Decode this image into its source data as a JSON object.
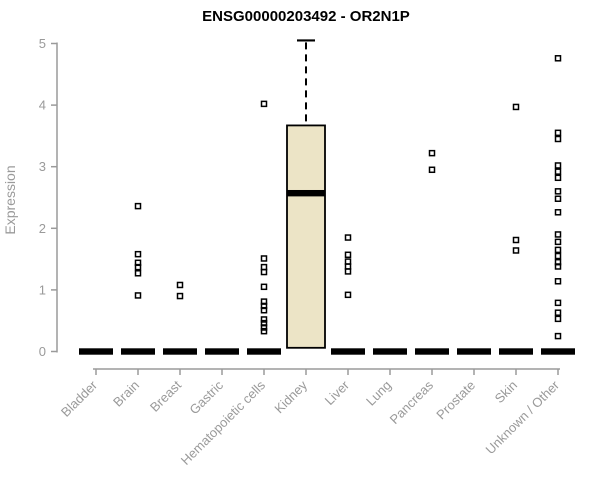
{
  "chart_data": {
    "type": "boxplot",
    "title": "ENSG00000203492 - OR2N1P",
    "ylabel": "Expression",
    "xlabel": "",
    "ylim": [
      0,
      5
    ],
    "yticks": [
      0,
      1,
      2,
      3,
      4,
      5
    ],
    "grid": false,
    "legend": "none",
    "categories": [
      "Bladder",
      "Brain",
      "Breast",
      "Gastric",
      "Hematopoietic cells",
      "Kidney",
      "Liver",
      "Lung",
      "Pancreas",
      "Prostate",
      "Skin",
      "Unknown / Other"
    ],
    "series": [
      {
        "category": "Bladder",
        "q1": 0,
        "median": 0,
        "q3": 0,
        "outliers": []
      },
      {
        "category": "Brain",
        "q1": 0,
        "median": 0,
        "q3": 0,
        "outliers": [
          2.36,
          1.58,
          1.44,
          1.37,
          1.27,
          0.91
        ]
      },
      {
        "category": "Breast",
        "q1": 0,
        "median": 0,
        "q3": 0,
        "outliers": [
          1.08,
          0.9
        ]
      },
      {
        "category": "Gastric",
        "q1": 0,
        "median": 0,
        "q3": 0,
        "outliers": []
      },
      {
        "category": "Hematopoietic cells",
        "q1": 0,
        "median": 0,
        "q3": 0,
        "outliers": [
          4.02,
          1.51,
          1.37,
          1.29,
          1.05,
          0.81,
          0.74,
          0.67,
          0.52,
          0.46,
          0.39,
          0.33
        ]
      },
      {
        "category": "Kidney",
        "q1": 0.06,
        "median": 2.57,
        "q3": 3.67,
        "whisker_high": 5.05,
        "outliers": []
      },
      {
        "category": "Liver",
        "q1": 0,
        "median": 0,
        "q3": 0,
        "outliers": [
          1.85,
          1.57,
          1.46,
          1.38,
          1.3,
          0.92
        ]
      },
      {
        "category": "Lung",
        "q1": 0,
        "median": 0,
        "q3": 0,
        "outliers": []
      },
      {
        "category": "Pancreas",
        "q1": 0,
        "median": 0,
        "q3": 0,
        "outliers": [
          3.22,
          2.95
        ]
      },
      {
        "category": "Prostate",
        "q1": 0,
        "median": 0,
        "q3": 0,
        "outliers": []
      },
      {
        "category": "Skin",
        "q1": 0,
        "median": 0,
        "q3": 0,
        "outliers": [
          3.97,
          1.81,
          1.64
        ]
      },
      {
        "category": "Unknown / Other",
        "q1": 0,
        "median": 0,
        "q3": 0,
        "outliers": [
          4.76,
          3.55,
          3.45,
          3.02,
          2.92,
          2.82,
          2.6,
          2.48,
          2.26,
          1.9,
          1.78,
          1.65,
          1.55,
          1.45,
          1.38,
          1.14,
          0.79,
          0.63,
          0.53,
          0.25
        ]
      }
    ],
    "style": {
      "box_fill": "#ece4c6",
      "box_stroke": "#000000",
      "median_color": "#000000",
      "axis_color": "#9a9a9a",
      "tick_label_color": "#9a9a9a",
      "title_color": "#000000",
      "outlier_marker": "open-square",
      "background": "#ffffff"
    }
  }
}
